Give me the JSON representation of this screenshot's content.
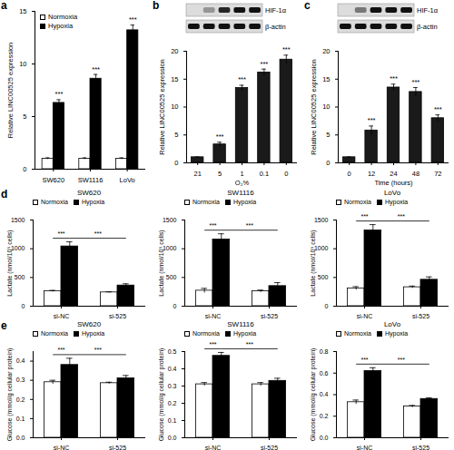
{
  "chart_data": [
    {
      "panel": "a",
      "type": "bar",
      "categories": [
        "SW620",
        "SW1116",
        "LoVo"
      ],
      "series": [
        {
          "name": "Normoxia",
          "color": "#ffffff",
          "values": [
            1,
            1,
            1
          ],
          "errors": [
            0.08,
            0.08,
            0.08
          ]
        },
        {
          "name": "Hypoxia",
          "color": "#000000",
          "values": [
            6.3,
            8.6,
            13.2
          ],
          "errors": [
            0.3,
            0.4,
            0.5
          ]
        }
      ],
      "y_label": "Relative LINC00525 expression",
      "ylim": [
        0,
        15
      ],
      "yticks": [
        0,
        5,
        10,
        15
      ],
      "legend": "top-left",
      "annotations": [
        {
          "category": "SW620",
          "series": "Hypoxia",
          "text": "***"
        },
        {
          "category": "SW1116",
          "series": "Hypoxia",
          "text": "***"
        },
        {
          "category": "LoVo",
          "series": "Hypoxia",
          "text": "***"
        }
      ]
    },
    {
      "panel": "b",
      "type": "bar",
      "categories": [
        "21",
        "5",
        "1",
        "0.1",
        "0"
      ],
      "values": [
        1,
        3.3,
        13.4,
        16.2,
        18.5
      ],
      "errors": [
        0.05,
        0.4,
        0.5,
        0.6,
        0.8
      ],
      "color": "#1a1a1a",
      "x_label": "O₂%",
      "y_label": "Relative LINC00525 expression",
      "ylim": [
        0,
        20
      ],
      "yticks": [
        0,
        5,
        10,
        15,
        20
      ],
      "annotations": [
        {
          "category": "5",
          "text": "***"
        },
        {
          "category": "1",
          "text": "***"
        },
        {
          "category": "0.1",
          "text": "***"
        },
        {
          "category": "0",
          "text": "***"
        }
      ],
      "blot": {
        "rows": [
          {
            "label": "HIF-1α",
            "intensity": [
              0,
              0.35,
              0.9,
              1,
              1
            ]
          },
          {
            "label": "β-actin",
            "intensity": [
              1,
              1,
              1,
              1,
              1
            ]
          }
        ]
      }
    },
    {
      "panel": "c",
      "type": "bar",
      "categories": [
        "0",
        "12",
        "24",
        "48",
        "72"
      ],
      "values": [
        1,
        5.8,
        13.5,
        12.7,
        8.0
      ],
      "errors": [
        0.05,
        0.8,
        0.6,
        0.8,
        0.6
      ],
      "color": "#1a1a1a",
      "x_label": "Time (hours)",
      "y_label": "Relative LINC00525 expression",
      "ylim": [
        0,
        20
      ],
      "yticks": [
        0,
        5,
        10,
        15,
        20
      ],
      "annotations": [
        {
          "category": "12",
          "text": "***"
        },
        {
          "category": "24",
          "text": "***"
        },
        {
          "category": "48",
          "text": "***"
        },
        {
          "category": "72",
          "text": "***"
        }
      ],
      "blot": {
        "rows": [
          {
            "label": "HIF-1α",
            "intensity": [
              0,
              0.5,
              1,
              1,
              1
            ]
          },
          {
            "label": "β-actin",
            "intensity": [
              1,
              1,
              1,
              1,
              1
            ]
          }
        ]
      }
    },
    {
      "panel": "d",
      "type": "bar",
      "title": "SW620",
      "categories": [
        "si-NC",
        "si-525"
      ],
      "series": [
        {
          "name": "Normoxia",
          "color": "#ffffff",
          "values": [
            260,
            240
          ],
          "errors": [
            15,
            10
          ]
        },
        {
          "name": "Hypoxia",
          "color": "#000000",
          "values": [
            1040,
            360
          ],
          "errors": [
            80,
            30
          ]
        }
      ],
      "y_label": "Lactate (nmol/10⁵ cells)",
      "ylim": [
        0,
        1500
      ],
      "yticks": [
        0,
        500,
        1000,
        1500
      ],
      "legend": "top",
      "brackets": [
        {
          "from": {
            "category": "si-NC",
            "series": "Normoxia"
          },
          "to": {
            "category": "si-NC",
            "series": "Hypoxia"
          },
          "text": "***"
        },
        {
          "from": {
            "category": "si-NC",
            "series": "Hypoxia"
          },
          "to": {
            "category": "si-525",
            "series": "Hypoxia"
          },
          "text": "***"
        }
      ]
    },
    {
      "type": "bar",
      "title": "SW1116",
      "categories": [
        "si-NC",
        "si-525"
      ],
      "series": [
        {
          "name": "Normoxia",
          "color": "#ffffff",
          "values": [
            270,
            260
          ],
          "errors": [
            40,
            20
          ]
        },
        {
          "name": "Hypoxia",
          "color": "#000000",
          "values": [
            1160,
            350
          ],
          "errors": [
            100,
            60
          ]
        }
      ],
      "y_label": "Lactate (nmol/10⁵ cells)",
      "ylim": [
        0,
        1500
      ],
      "yticks": [
        0,
        500,
        1000,
        1500
      ],
      "legend": "top",
      "brackets": [
        {
          "from": {
            "category": "si-NC",
            "series": "Normoxia"
          },
          "to": {
            "category": "si-NC",
            "series": "Hypoxia"
          },
          "text": "***"
        },
        {
          "from": {
            "category": "si-NC",
            "series": "Hypoxia"
          },
          "to": {
            "category": "si-525",
            "series": "Hypoxia"
          },
          "text": "***"
        }
      ]
    },
    {
      "type": "bar",
      "title": "LoVo",
      "categories": [
        "si-NC",
        "si-525"
      ],
      "series": [
        {
          "name": "Normoxia",
          "color": "#ffffff",
          "values": [
            310,
            330
          ],
          "errors": [
            30,
            20
          ]
        },
        {
          "name": "Hypoxia",
          "color": "#000000",
          "values": [
            1320,
            460
          ],
          "errors": [
            100,
            50
          ]
        }
      ],
      "y_label": "Lactate (nmol/10⁵ cells)",
      "ylim": [
        0,
        1500
      ],
      "yticks": [
        0,
        500,
        1000,
        1500
      ],
      "legend": "top",
      "brackets": [
        {
          "from": {
            "category": "si-NC",
            "series": "Normoxia"
          },
          "to": {
            "category": "si-NC",
            "series": "Hypoxia"
          },
          "text": "***"
        },
        {
          "from": {
            "category": "si-NC",
            "series": "Hypoxia"
          },
          "to": {
            "category": "si-525",
            "series": "Hypoxia"
          },
          "text": "***"
        }
      ]
    },
    {
      "panel": "e",
      "type": "bar",
      "title": "SW620",
      "categories": [
        "si-NC",
        "si-525"
      ],
      "series": [
        {
          "name": "Normoxia",
          "color": "#ffffff",
          "values": [
            0.29,
            0.285
          ],
          "errors": [
            0.01,
            0.005
          ]
        },
        {
          "name": "Hypoxia",
          "color": "#000000",
          "values": [
            0.38,
            0.31
          ],
          "errors": [
            0.035,
            0.015
          ]
        }
      ],
      "y_label": "Glucose (mmol/g cellular protein)",
      "ylim": [
        0,
        0.45
      ],
      "yticks": [
        {
          "value": 0,
          "label": "0.0"
        },
        0.1,
        0.2,
        0.3,
        0.4
      ],
      "legend": "top",
      "brackets": [
        {
          "from": {
            "category": "si-NC",
            "series": "Normoxia"
          },
          "to": {
            "category": "si-NC",
            "series": "Hypoxia"
          },
          "text": "***"
        },
        {
          "from": {
            "category": "si-NC",
            "series": "Hypoxia"
          },
          "to": {
            "category": "si-525",
            "series": "Hypoxia"
          },
          "text": "***"
        }
      ]
    },
    {
      "type": "bar",
      "title": "SW1116",
      "categories": [
        "si-NC",
        "si-525"
      ],
      "series": [
        {
          "name": "Normoxia",
          "color": "#ffffff",
          "values": [
            0.31,
            0.31
          ],
          "errors": [
            0.01,
            0.01
          ]
        },
        {
          "name": "Hypoxia",
          "color": "#000000",
          "values": [
            0.475,
            0.33
          ],
          "errors": [
            0.02,
            0.015
          ]
        }
      ],
      "y_label": "Glucose (mmol/g cellular protein)",
      "ylim": [
        0,
        0.5
      ],
      "yticks": [
        {
          "value": 0,
          "label": "0.0"
        },
        0.1,
        0.2,
        0.3,
        0.4,
        0.5
      ],
      "legend": "top",
      "brackets": [
        {
          "from": {
            "category": "si-NC",
            "series": "Normoxia"
          },
          "to": {
            "category": "si-NC",
            "series": "Hypoxia"
          },
          "text": "***"
        },
        {
          "from": {
            "category": "si-NC",
            "series": "Hypoxia"
          },
          "to": {
            "category": "si-525",
            "series": "Hypoxia"
          },
          "text": "***"
        }
      ]
    },
    {
      "type": "bar",
      "title": "LoVo",
      "categories": [
        "si-NC",
        "si-525"
      ],
      "series": [
        {
          "name": "Normoxia",
          "color": "#ffffff",
          "values": [
            0.33,
            0.29
          ],
          "errors": [
            0.02,
            0.01
          ]
        },
        {
          "name": "Hypoxia",
          "color": "#000000",
          "values": [
            0.62,
            0.36
          ],
          "errors": [
            0.03,
            0.01
          ]
        }
      ],
      "y_label": "Glucose (mmol/g cellular protein)",
      "ylim": [
        0,
        0.8
      ],
      "yticks": [
        {
          "value": 0,
          "label": "0.0"
        },
        0.2,
        0.4,
        0.6,
        0.8
      ],
      "legend": "top",
      "brackets": [
        {
          "from": {
            "category": "si-NC",
            "series": "Normoxia"
          },
          "to": {
            "category": "si-NC",
            "series": "Hypoxia"
          },
          "text": "***"
        },
        {
          "from": {
            "category": "si-NC",
            "series": "Hypoxia"
          },
          "to": {
            "category": "si-525",
            "series": "Hypoxia"
          },
          "text": "***"
        }
      ]
    }
  ]
}
